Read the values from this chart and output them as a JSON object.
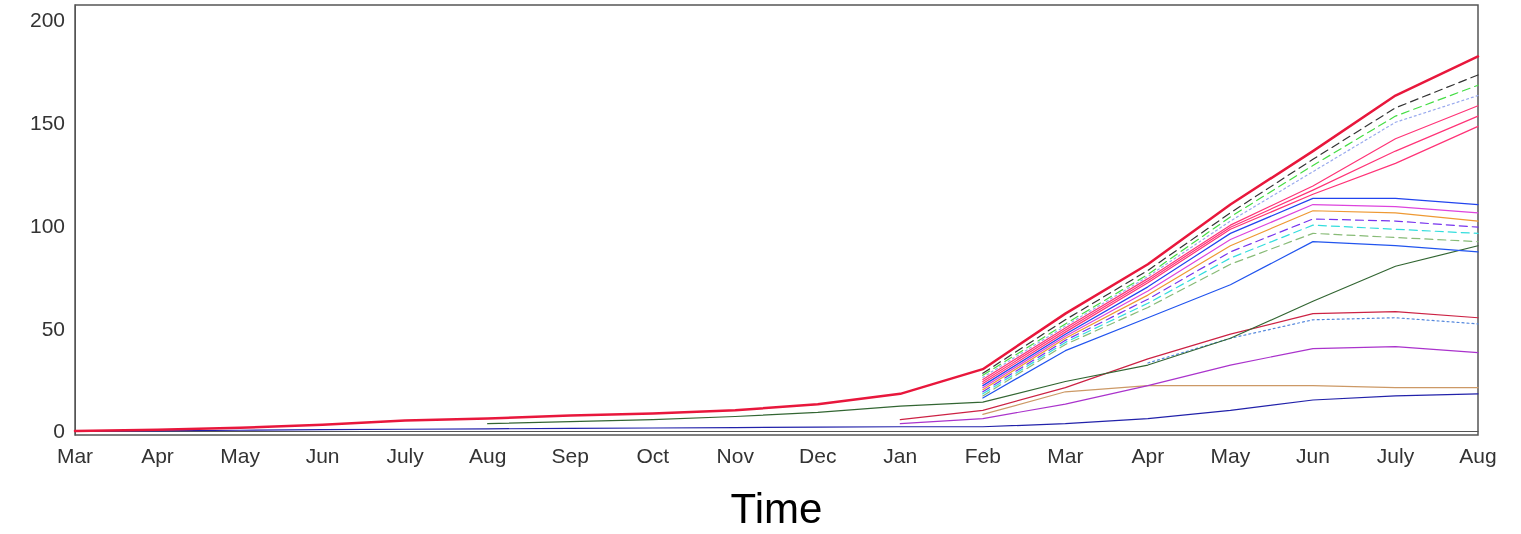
{
  "chart_data": {
    "type": "line",
    "xlabel": "Time",
    "categories": [
      "Mar",
      "Apr",
      "May",
      "Jun",
      "July",
      "Aug",
      "Sep",
      "Oct",
      "Nov",
      "Dec",
      "Jan",
      "Feb",
      "Mar",
      "Apr",
      "May",
      "Jun",
      "July",
      "Aug"
    ],
    "ylim": [
      -2,
      207
    ],
    "yticks": [
      0,
      50,
      100,
      150,
      200
    ],
    "marker": "none",
    "series": [
      {
        "color": "#e8173c",
        "line_style": "solid",
        "values": [
          0,
          0.5,
          1.5,
          3,
          5,
          6,
          7.5,
          8.5,
          10,
          13,
          18,
          30,
          57,
          81,
          110,
          136,
          163,
          182
        ]
      },
      {
        "color": "#333333",
        "line_style": "dashed",
        "values": [
          null,
          null,
          null,
          null,
          null,
          null,
          null,
          null,
          null,
          null,
          null,
          28,
          54,
          78,
          106,
          132,
          157,
          173
        ]
      },
      {
        "color": "#44dd44",
        "line_style": "dashed",
        "values": [
          null,
          null,
          null,
          null,
          null,
          null,
          null,
          null,
          null,
          null,
          null,
          27,
          52,
          76,
          104,
          129,
          153,
          168
        ]
      },
      {
        "color": "#99aaee",
        "line_style": "dotted",
        "values": [
          null,
          null,
          null,
          null,
          null,
          null,
          null,
          null,
          null,
          null,
          null,
          26,
          51,
          75,
          102,
          126,
          150,
          163
        ]
      },
      {
        "color": "#ff3377",
        "line_style": "solid",
        "values": [
          null,
          null,
          null,
          null,
          null,
          null,
          null,
          null,
          null,
          null,
          null,
          25,
          50,
          74,
          100,
          119,
          142,
          158
        ]
      },
      {
        "color": "#ff3377",
        "line_style": "solid",
        "values": [
          null,
          null,
          null,
          null,
          null,
          null,
          null,
          null,
          null,
          null,
          null,
          24,
          49,
          73,
          99,
          117,
          136,
          153
        ]
      },
      {
        "color": "#ff3377",
        "line_style": "solid",
        "values": [
          null,
          null,
          null,
          null,
          null,
          null,
          null,
          null,
          null,
          null,
          null,
          23,
          48,
          72,
          98,
          115,
          130,
          148
        ]
      },
      {
        "color": "#2244ee",
        "line_style": "solid",
        "values": [
          null,
          null,
          null,
          null,
          null,
          null,
          null,
          null,
          null,
          null,
          null,
          22,
          47,
          70,
          96,
          113,
          113,
          110
        ]
      },
      {
        "color": "#dd44dd",
        "line_style": "solid",
        "values": [
          null,
          null,
          null,
          null,
          null,
          null,
          null,
          null,
          null,
          null,
          null,
          21,
          46,
          68,
          93,
          110,
          109,
          106
        ]
      },
      {
        "color": "#ee9933",
        "line_style": "solid",
        "values": [
          null,
          null,
          null,
          null,
          null,
          null,
          null,
          null,
          null,
          null,
          null,
          20,
          45,
          66,
          90,
          107,
          106,
          102
        ]
      },
      {
        "color": "#7733ee",
        "line_style": "dashed",
        "values": [
          null,
          null,
          null,
          null,
          null,
          null,
          null,
          null,
          null,
          null,
          null,
          19,
          44,
          64,
          87,
          103,
          102,
          99
        ]
      },
      {
        "color": "#33dddd",
        "line_style": "dashed",
        "values": [
          null,
          null,
          null,
          null,
          null,
          null,
          null,
          null,
          null,
          null,
          null,
          18,
          43,
          62,
          84,
          100,
          98,
          96
        ]
      },
      {
        "color": "#88bb77",
        "line_style": "dashed",
        "values": [
          null,
          null,
          null,
          null,
          null,
          null,
          null,
          null,
          null,
          null,
          null,
          17,
          42,
          60,
          81,
          96,
          94,
          92
        ]
      },
      {
        "color": "#2255ee",
        "line_style": "solid",
        "values": [
          null,
          null,
          null,
          null,
          null,
          null,
          null,
          null,
          null,
          null,
          null,
          16,
          39,
          55,
          71,
          92,
          90,
          87
        ]
      },
      {
        "color": "#336633",
        "line_style": "solid",
        "values": [
          null,
          null,
          null,
          null,
          null,
          3.5,
          4.5,
          5.5,
          7,
          9,
          12,
          14,
          24,
          32,
          45,
          63,
          80,
          90
        ]
      },
      {
        "color": "#cc2244",
        "line_style": "solid",
        "values": [
          null,
          null,
          null,
          null,
          null,
          null,
          null,
          null,
          null,
          null,
          5.5,
          10,
          21,
          35,
          47,
          57,
          58,
          55
        ]
      },
      {
        "color": "#5588dd",
        "line_style": "dotted",
        "values": [
          null,
          null,
          null,
          null,
          null,
          null,
          null,
          null,
          null,
          null,
          null,
          null,
          null,
          33,
          45,
          54,
          55,
          52
        ]
      },
      {
        "color": "#aa33cc",
        "line_style": "solid",
        "values": [
          null,
          null,
          null,
          null,
          null,
          null,
          null,
          null,
          null,
          null,
          3.5,
          6,
          13,
          22,
          32,
          40,
          41,
          38
        ]
      },
      {
        "color": "#cc9966",
        "line_style": "solid",
        "values": [
          null,
          null,
          null,
          null,
          null,
          null,
          null,
          null,
          null,
          null,
          null,
          8,
          19,
          22,
          22,
          22,
          21,
          21
        ]
      },
      {
        "color": "#2222aa",
        "line_style": "solid",
        "values": [
          0,
          0,
          0.3,
          0.6,
          0.8,
          1,
          1.2,
          1.4,
          1.6,
          1.8,
          2,
          2,
          3.5,
          6,
          10,
          15,
          17,
          18
        ]
      }
    ]
  }
}
